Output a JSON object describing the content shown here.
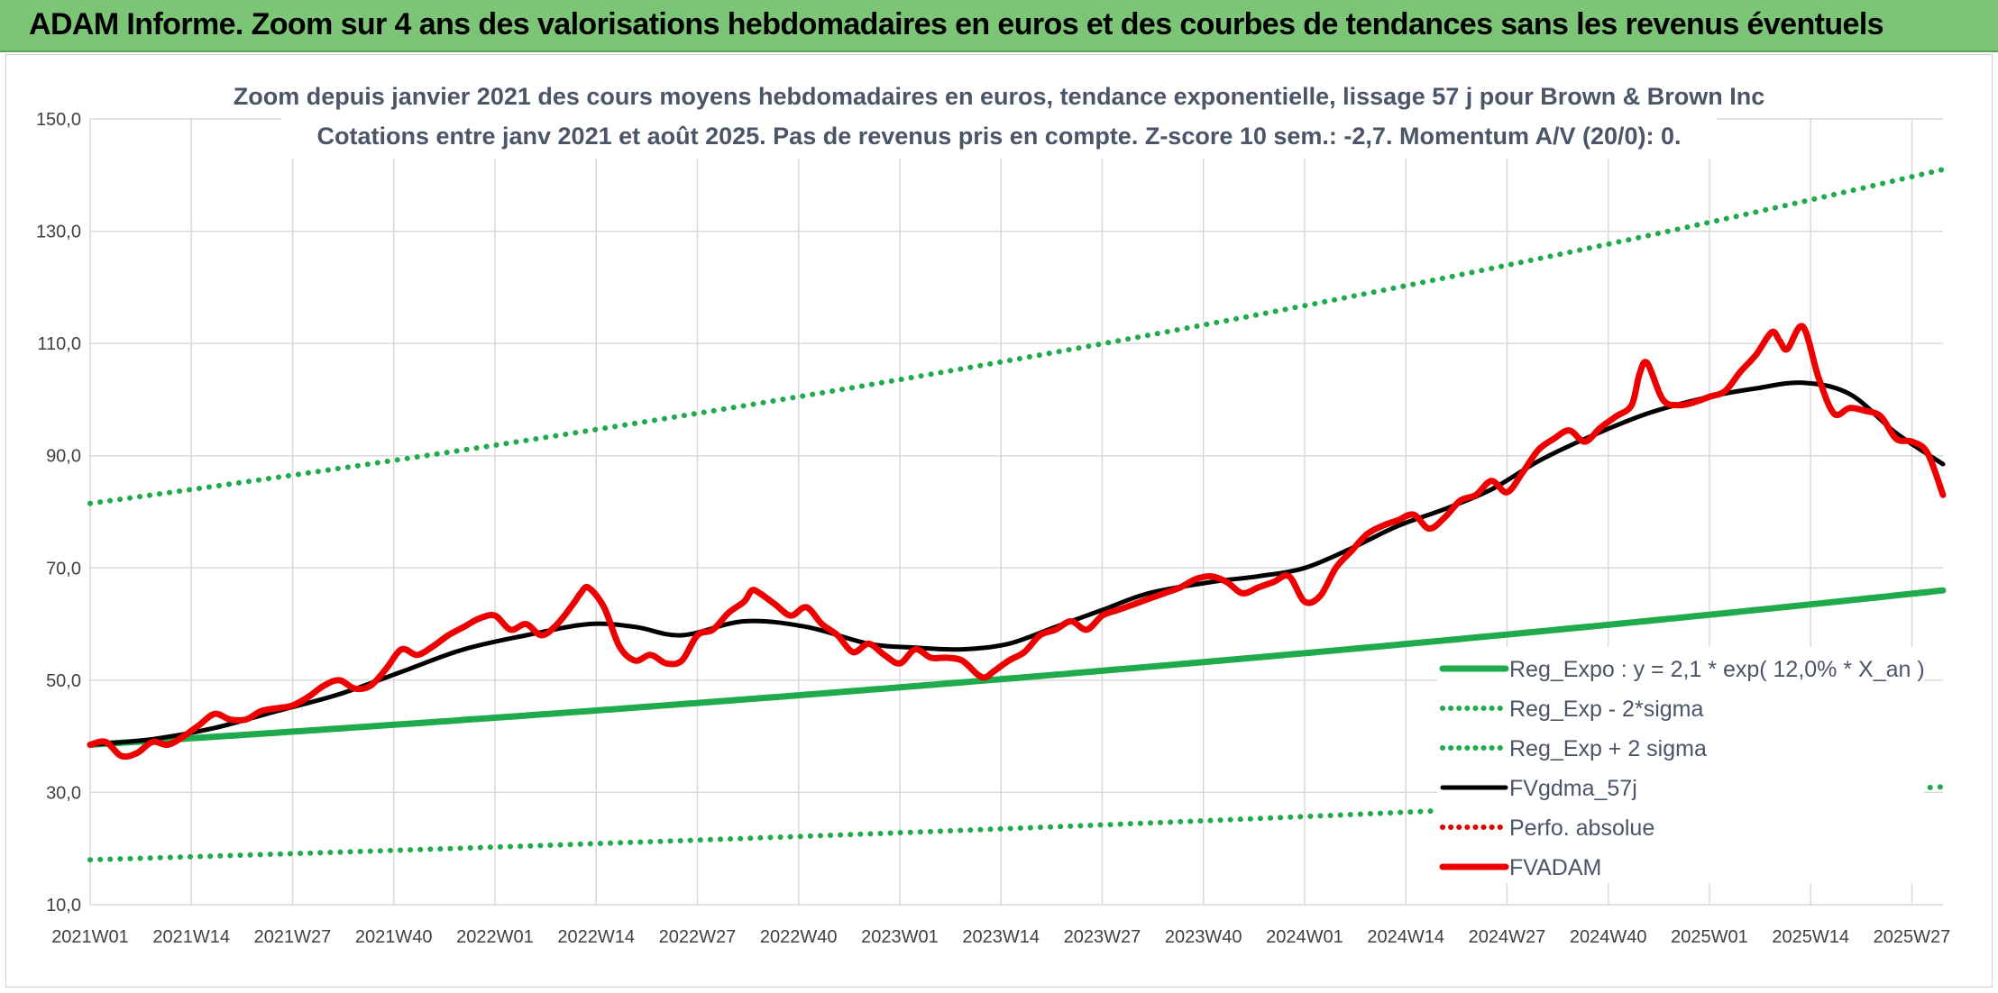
{
  "banner": {
    "title": "ADAM Informe. Zoom sur 4 ans des valorisations hebdomadaires en euros et des courbes de tendances sans les revenus éventuels",
    "color": "#7cc576"
  },
  "chart_data": {
    "type": "line",
    "title_lines": [
      "Zoom depuis janvier 2021 des cours moyens hebdomadaires en euros, tendance exponentielle, lissage 57 j pour Brown & Brown Inc",
      "Cotations entre janv 2021 et août 2025. Pas de revenus pris en compte. Z-score 10 sem.: -2,7. Momentum A/V (20/0): 0."
    ],
    "xlabel": "",
    "ylabel": "",
    "ylim": [
      10,
      150
    ],
    "y_ticks": [
      "150,0",
      "130,0",
      "110,0",
      "90,0",
      "70,0",
      "50,0",
      "30,0",
      "10,0"
    ],
    "y_tick_values": [
      150,
      130,
      110,
      90,
      70,
      50,
      30,
      10
    ],
    "x_tick_labels": [
      "2021W01",
      "2021W14",
      "2021W27",
      "2021W40",
      "2022W01",
      "2022W14",
      "2022W27",
      "2022W40",
      "2023W01",
      "2023W14",
      "2023W27",
      "2023W40",
      "2024W01",
      "2024W14",
      "2024W27",
      "2024W40",
      "2025W01",
      "2025W14",
      "2025W27"
    ],
    "x_tick_index": [
      0,
      13,
      26,
      39,
      52,
      65,
      78,
      91,
      104,
      117,
      130,
      143,
      156,
      169,
      182,
      195,
      208,
      221,
      234
    ],
    "n_weeks": 239,
    "grid": true,
    "legend_position": "bottom-right",
    "series": [
      {
        "name": "Reg_Expo : y = 2,1 * exp( 12,0% *  X_an )",
        "color": "#1faa4b",
        "style": "solid-thick",
        "x": [
          0,
          238
        ],
        "y": [
          38.5,
          66.0
        ]
      },
      {
        "name": "Reg_Exp - 2*sigma",
        "color": "#1faa4b",
        "style": "dotted",
        "x": [
          0,
          238
        ],
        "y": [
          18.0,
          31.0
        ]
      },
      {
        "name": "Reg_Exp + 2 sigma",
        "color": "#1faa4b",
        "style": "dotted",
        "x": [
          0,
          238
        ],
        "y": [
          81.5,
          141.0
        ]
      },
      {
        "name": "FVgdma_57j",
        "color": "#000000",
        "style": "solid",
        "x": [
          0,
          8,
          16,
          24,
          32,
          40,
          48,
          56,
          64,
          70,
          76,
          84,
          92,
          100,
          106,
          112,
          118,
          124,
          130,
          136,
          144,
          150,
          156,
          162,
          168,
          174,
          180,
          186,
          192,
          200,
          208,
          214,
          220,
          226,
          232,
          238
        ],
        "y": [
          38.5,
          39.5,
          41.5,
          44.5,
          47.5,
          51.5,
          55.5,
          58.0,
          60.0,
          59.5,
          58.0,
          60.5,
          59.5,
          56.5,
          55.8,
          55.5,
          56.5,
          59.5,
          62.5,
          65.5,
          67.5,
          68.5,
          70.0,
          73.5,
          77.5,
          80.5,
          84.0,
          89.0,
          93.0,
          97.5,
          100.5,
          102.0,
          103.0,
          101.0,
          94.0,
          88.5
        ]
      },
      {
        "name": "Perfo. absolue",
        "color": "#e00000",
        "style": "dotted",
        "x": [],
        "y": []
      },
      {
        "name": "FVADAM",
        "color": "#ee0000",
        "style": "solid-thick",
        "x": [
          0,
          2,
          4,
          6,
          8,
          10,
          12,
          14,
          16,
          18,
          20,
          22,
          24,
          26,
          28,
          30,
          32,
          34,
          36,
          38,
          40,
          42,
          44,
          46,
          48,
          50,
          52,
          54,
          56,
          58,
          60,
          62,
          63,
          64,
          66,
          68,
          70,
          72,
          74,
          76,
          78,
          80,
          82,
          84,
          85,
          86,
          88,
          90,
          92,
          94,
          96,
          98,
          100,
          102,
          104,
          106,
          108,
          110,
          112,
          114,
          115,
          116,
          118,
          120,
          122,
          124,
          126,
          128,
          130,
          132,
          134,
          136,
          138,
          140,
          142,
          144,
          146,
          148,
          150,
          152,
          154,
          156,
          158,
          160,
          162,
          164,
          166,
          168,
          170,
          172,
          174,
          176,
          178,
          180,
          182,
          184,
          186,
          188,
          190,
          192,
          194,
          196,
          198,
          199,
          200,
          202,
          204,
          206,
          208,
          210,
          212,
          214,
          216,
          217,
          218,
          220,
          222,
          224,
          226,
          228,
          230,
          232,
          234,
          236,
          238
        ],
        "y": [
          38.5,
          39.0,
          36.5,
          37.0,
          39.0,
          38.5,
          40.0,
          42.0,
          44.0,
          43.0,
          43.0,
          44.5,
          45.0,
          45.5,
          47.0,
          49.0,
          50.0,
          48.5,
          49.0,
          52.0,
          55.5,
          54.5,
          56.0,
          58.0,
          59.5,
          61.0,
          61.5,
          59.0,
          60.0,
          58.0,
          60.0,
          63.5,
          65.5,
          66.5,
          63.0,
          56.0,
          53.5,
          54.5,
          53.0,
          53.5,
          58.0,
          59.0,
          62.0,
          64.0,
          66.0,
          65.5,
          63.5,
          61.5,
          63.0,
          60.0,
          58.0,
          55.0,
          56.5,
          54.5,
          53.0,
          55.5,
          54.0,
          54.0,
          53.5,
          51.0,
          50.5,
          51.5,
          53.5,
          55.0,
          58.0,
          59.0,
          60.5,
          59.0,
          61.5,
          62.5,
          63.5,
          64.5,
          65.5,
          66.5,
          68.0,
          68.5,
          67.5,
          65.5,
          66.5,
          67.5,
          68.5,
          64.0,
          65.0,
          70.0,
          73.0,
          76.0,
          77.5,
          78.5,
          79.5,
          77.0,
          79.0,
          82.0,
          83.0,
          85.5,
          83.5,
          87.0,
          91.0,
          93.0,
          94.5,
          92.5,
          95.0,
          97.0,
          99.0,
          104.5,
          106.5,
          100.0,
          99.0,
          99.5,
          100.5,
          101.5,
          105.0,
          108.0,
          112.0,
          110.5,
          109.0,
          113.0,
          104.0,
          97.5,
          98.5,
          98.0,
          97.0,
          93.0,
          92.5,
          90.5,
          83.0
        ]
      }
    ]
  }
}
